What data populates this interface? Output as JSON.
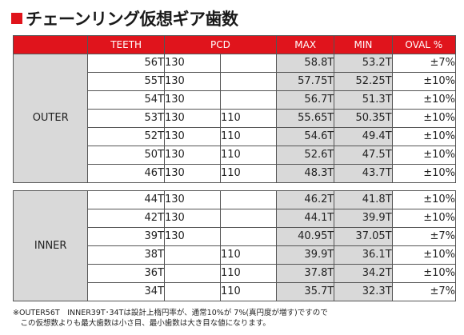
{
  "title": "チェーンリング仮想ギア歯数",
  "headers": {
    "teeth": "TEETH",
    "pcd": "PCD",
    "max": "MAX",
    "min": "MIN",
    "oval": "OVAL %"
  },
  "outer": {
    "label": "OUTER",
    "rows": [
      {
        "teeth": "56T",
        "pcd1": "130",
        "pcd2": "",
        "max": "58.8T",
        "min": "53.2T",
        "oval": "±7%"
      },
      {
        "teeth": "55T",
        "pcd1": "130",
        "pcd2": "",
        "max": "57.75T",
        "min": "52.25T",
        "oval": "±10%"
      },
      {
        "teeth": "54T",
        "pcd1": "130",
        "pcd2": "",
        "max": "56.7T",
        "min": "51.3T",
        "oval": "±10%"
      },
      {
        "teeth": "53T",
        "pcd1": "130",
        "pcd2": "110",
        "max": "55.65T",
        "min": "50.35T",
        "oval": "±10%"
      },
      {
        "teeth": "52T",
        "pcd1": "130",
        "pcd2": "110",
        "max": "54.6T",
        "min": "49.4T",
        "oval": "±10%"
      },
      {
        "teeth": "50T",
        "pcd1": "130",
        "pcd2": "110",
        "max": "52.6T",
        "min": "47.5T",
        "oval": "±10%"
      },
      {
        "teeth": "46T",
        "pcd1": "130",
        "pcd2": "110",
        "max": "48.3T",
        "min": "43.7T",
        "oval": "±10%"
      }
    ]
  },
  "inner": {
    "label": "INNER",
    "rows": [
      {
        "teeth": "44T",
        "pcd1": "130",
        "pcd2": "",
        "max": "46.2T",
        "min": "41.8T",
        "oval": "±10%"
      },
      {
        "teeth": "42T",
        "pcd1": "130",
        "pcd2": "",
        "max": "44.1T",
        "min": "39.9T",
        "oval": "±10%"
      },
      {
        "teeth": "39T",
        "pcd1": "130",
        "pcd2": "",
        "max": "40.95T",
        "min": "37.05T",
        "oval": "±7%"
      },
      {
        "teeth": "38T",
        "pcd1": "",
        "pcd2": "110",
        "max": "39.9T",
        "min": "36.1T",
        "oval": "±10%"
      },
      {
        "teeth": "36T",
        "pcd1": "",
        "pcd2": "110",
        "max": "37.8T",
        "min": "34.2T",
        "oval": "±10%"
      },
      {
        "teeth": "34T",
        "pcd1": "",
        "pcd2": "110",
        "max": "35.7T",
        "min": "32.3T",
        "oval": "±7%"
      }
    ]
  },
  "note": {
    "line1": "※OUTER56T　INNER39T･34Tは設計上楕円率が、通常10%が 7%(真円度が増す)ですので",
    "line2": "　この仮想数よりも最大歯数は小さ目、最小歯数は大き目な値になります。"
  },
  "colors": {
    "header_bg": "#e0141c",
    "shaded_bg": "#d9d9d9"
  }
}
